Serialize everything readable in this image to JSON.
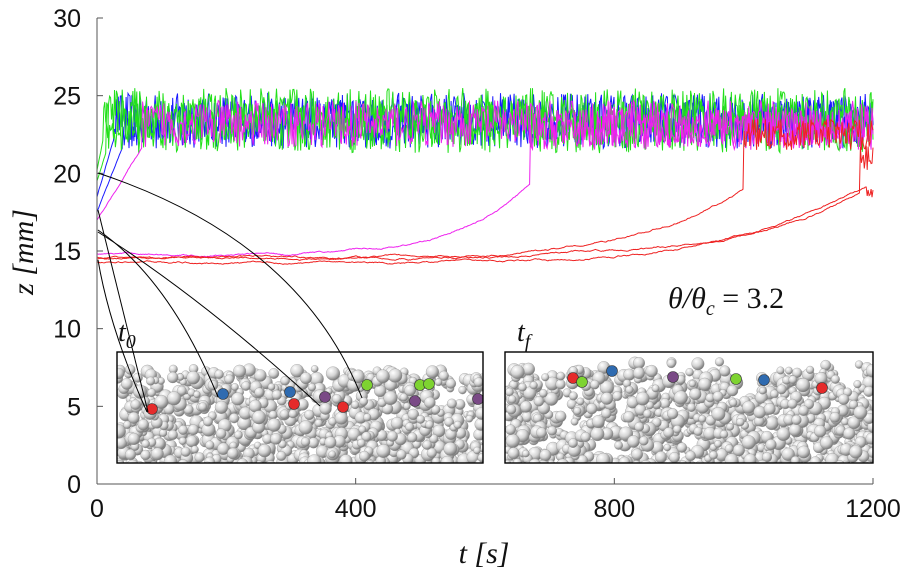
{
  "chart_data": {
    "type": "line",
    "title": "",
    "xlabel": "t [s]",
    "ylabel": "z [mm]",
    "xlim": [
      0,
      1200
    ],
    "ylim": [
      0,
      30
    ],
    "xticks": [
      0,
      400,
      800,
      1200
    ],
    "yticks": [
      0,
      5,
      10,
      15,
      20,
      25,
      30
    ],
    "annotation": "θ/θc = 3.2",
    "insets": [
      {
        "label": "t0",
        "description": "initial packing"
      },
      {
        "label": "tf",
        "description": "final packing"
      }
    ],
    "series": [
      {
        "name": "grain-blue-1",
        "color": "#1a1aff",
        "start": 18.5,
        "rise_t": 25,
        "mean": 23.6,
        "noise": 1.6
      },
      {
        "name": "grain-blue-2",
        "color": "#1a1aff",
        "start": 17.5,
        "rise_t": 40,
        "mean": 23.2,
        "noise": 1.6
      },
      {
        "name": "grain-green-1",
        "color": "#22e01a",
        "start": 20.2,
        "rise_t": 10,
        "mean": 23.8,
        "noise": 1.7
      },
      {
        "name": "grain-green-2",
        "color": "#22e01a",
        "start": 19.5,
        "rise_t": 15,
        "mean": 23.0,
        "noise": 1.7
      },
      {
        "name": "grain-magenta-1",
        "color": "#ee22ee",
        "start": 17.0,
        "rise_t": 70,
        "mean": 23.2,
        "noise": 1.5
      },
      {
        "name": "grain-magenta-2",
        "color": "#ee22ee",
        "start": 14.8,
        "rise_t": 670,
        "mean": 22.8,
        "noise": 1.3
      },
      {
        "name": "grain-red-1",
        "color": "#ee2222",
        "start": 14.5,
        "rise_t": 1000,
        "mean": 22.5,
        "noise": 1.0
      },
      {
        "name": "grain-red-2",
        "color": "#ee2222",
        "start": 14.3,
        "rise_t": 1180,
        "mean": 21.0,
        "noise": 0.8
      },
      {
        "name": "grain-red-3",
        "color": "#ee2222",
        "start": 14.6,
        "rise_t": 1190,
        "mean": 19.0,
        "noise": 0.6
      }
    ],
    "colors": {
      "axis": "#555555",
      "text": "#111111",
      "connector": "#000000",
      "bead_blue": "#2f6bb0",
      "bead_red": "#e52b2b",
      "bead_green": "#7ed331",
      "bead_purple": "#7a4a86"
    }
  }
}
